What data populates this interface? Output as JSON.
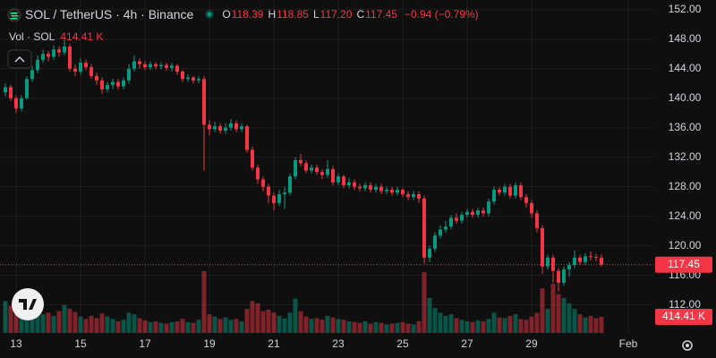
{
  "chart_data": {
    "type": "candlestick",
    "header": {
      "title": "SOL / TetherUS · 4h · Binance",
      "ohlc": [
        {
          "label": "O",
          "value": "118.39"
        },
        {
          "label": "H",
          "value": "118.85"
        },
        {
          "label": "L",
          "value": "117.20"
        },
        {
          "label": "C",
          "value": "117.45"
        }
      ],
      "change": "−0.94 (−0.79%)",
      "volume_title": "Vol · SOL",
      "volume_value": "414.41 K"
    },
    "up_color": "#089981",
    "down_color": "#f23645",
    "grid": true,
    "xlim": [
      -1,
      120.67
    ],
    "xticks": [
      {
        "value": 2,
        "label": "13"
      },
      {
        "value": 14,
        "label": "15"
      },
      {
        "value": 26,
        "label": "17"
      },
      {
        "value": 38,
        "label": "19"
      },
      {
        "value": 50,
        "label": "21"
      },
      {
        "value": 62,
        "label": "23"
      },
      {
        "value": 74,
        "label": "25"
      },
      {
        "value": 86,
        "label": "27"
      },
      {
        "value": 98,
        "label": "29"
      },
      {
        "value": 116,
        "label": "Feb"
      }
    ],
    "ylim": [
      108.2,
      153.3
    ],
    "yticks": [
      {
        "value": 152,
        "label": "152.00"
      },
      {
        "value": 148,
        "label": "148.00"
      },
      {
        "value": 144,
        "label": "144.00"
      },
      {
        "value": 140,
        "label": "140.00"
      },
      {
        "value": 136,
        "label": "136.00"
      },
      {
        "value": 132,
        "label": "132.00"
      },
      {
        "value": 128,
        "label": "128.00"
      },
      {
        "value": 124,
        "label": "124.00"
      },
      {
        "value": 120,
        "label": "120.00"
      },
      {
        "value": 116,
        "label": "116.00"
      },
      {
        "value": 112,
        "label": "112.00"
      }
    ],
    "volume_lim": [
      0,
      8560000
    ],
    "last_price": 117.45,
    "open": [
      140.8,
      141.5,
      140.0,
      138.6,
      140.0,
      142.6,
      143.8,
      145.2,
      146.0,
      145.6,
      146.6,
      146.2,
      147.0,
      144.0,
      143.6,
      144.8,
      144.2,
      143.0,
      142.4,
      141.2,
      141.8,
      142.2,
      141.6,
      142.4,
      144.0,
      145.0,
      144.6,
      144.2,
      144.6,
      144.3,
      144.5,
      144.1,
      144.4,
      143.6,
      142.6,
      142.8,
      142.4,
      142.6,
      136.4,
      135.8,
      136.2,
      135.6,
      136.0,
      136.6,
      135.8,
      136.2,
      133.0,
      130.6,
      129.0,
      128.0,
      126.8,
      125.8,
      127.0,
      127.2,
      129.4,
      131.6,
      131.2,
      130.2,
      130.6,
      130.0,
      129.6,
      130.4,
      128.6,
      129.4,
      128.2,
      128.6,
      128.0,
      127.8,
      128.2,
      127.6,
      128.0,
      127.4,
      127.6,
      127.2,
      127.6,
      127.0,
      126.6,
      127.0,
      126.4,
      118.4,
      119.6,
      121.4,
      122.2,
      122.6,
      123.8,
      123.4,
      124.2,
      124.6,
      124.2,
      124.8,
      124.4,
      126.0,
      127.6,
      127.2,
      128.0,
      126.8,
      128.2,
      126.6,
      125.8,
      124.4,
      122.4,
      117.2,
      118.4,
      116.6,
      115.0,
      116.8,
      117.4,
      118.4,
      117.8,
      118.6,
      118.5,
      118.39
    ],
    "high": [
      142.0,
      141.8,
      140.4,
      140.4,
      143.0,
      144.4,
      145.8,
      146.6,
      146.4,
      147.2,
      147.0,
      148.0,
      147.4,
      144.6,
      145.4,
      145.2,
      144.6,
      143.4,
      142.8,
      142.2,
      142.6,
      142.6,
      142.8,
      144.6,
      145.8,
      145.4,
      145.0,
      145.0,
      144.9,
      144.9,
      144.8,
      144.8,
      144.6,
      143.8,
      143.2,
      143.0,
      143.0,
      143.0,
      137.0,
      136.8,
      136.6,
      136.6,
      137.2,
      137.0,
      136.6,
      136.4,
      133.4,
      131.0,
      129.4,
      128.4,
      127.2,
      127.6,
      128.0,
      129.8,
      132.0,
      132.4,
      131.6,
      131.0,
      131.0,
      130.4,
      131.6,
      130.8,
      129.8,
      129.6,
      129.2,
      129.0,
      128.4,
      128.6,
      128.6,
      128.4,
      128.4,
      128.0,
      128.0,
      128.0,
      127.8,
      127.4,
      127.4,
      127.4,
      126.8,
      120.0,
      121.8,
      122.8,
      123.4,
      124.2,
      124.4,
      124.6,
      125.0,
      125.0,
      125.2,
      125.2,
      126.4,
      128.0,
      128.0,
      128.4,
      128.4,
      128.6,
      128.6,
      127.0,
      126.2,
      124.8,
      122.8,
      118.8,
      118.8,
      117.0,
      117.2,
      117.8,
      119.4,
      118.8,
      119.0,
      119.2,
      118.9,
      118.85
    ],
    "low": [
      140.2,
      139.6,
      138.0,
      138.2,
      139.8,
      142.2,
      143.4,
      144.8,
      145.0,
      145.2,
      145.6,
      145.8,
      143.6,
      143.0,
      143.2,
      143.8,
      142.6,
      141.8,
      140.6,
      140.8,
      141.2,
      141.2,
      141.2,
      142.0,
      143.6,
      144.0,
      143.8,
      143.8,
      143.9,
      143.9,
      143.7,
      143.6,
      143.2,
      142.2,
      142.2,
      142.0,
      142.0,
      130.2,
      135.0,
      135.4,
      135.2,
      135.2,
      135.6,
      135.4,
      135.4,
      132.6,
      130.2,
      128.4,
      127.4,
      125.8,
      124.8,
      125.4,
      125.0,
      126.8,
      129.0,
      130.8,
      129.8,
      129.8,
      129.6,
      129.0,
      129.2,
      128.2,
      128.2,
      127.8,
      127.8,
      127.6,
      127.4,
      127.4,
      127.2,
      127.2,
      127.0,
      127.0,
      126.8,
      126.8,
      126.6,
      126.2,
      126.2,
      125.8,
      117.6,
      117.8,
      119.2,
      121.0,
      121.8,
      122.2,
      123.0,
      123.0,
      123.8,
      123.8,
      123.8,
      124.0,
      124.0,
      125.6,
      126.8,
      126.8,
      126.4,
      126.4,
      126.2,
      125.2,
      123.8,
      121.8,
      116.2,
      116.8,
      115.0,
      113.8,
      114.6,
      115.8,
      117.0,
      117.4,
      117.4,
      118.0,
      117.9,
      117.2
    ],
    "close": [
      141.5,
      140.0,
      138.6,
      140.0,
      142.6,
      143.8,
      145.2,
      146.0,
      145.6,
      146.6,
      146.2,
      147.0,
      144.0,
      143.6,
      144.8,
      144.2,
      143.0,
      142.4,
      141.2,
      141.8,
      142.2,
      141.6,
      142.4,
      144.0,
      145.0,
      144.6,
      144.2,
      144.6,
      144.3,
      144.5,
      144.1,
      144.4,
      143.6,
      142.6,
      142.8,
      142.4,
      142.6,
      136.4,
      135.8,
      136.2,
      135.6,
      136.0,
      136.6,
      135.8,
      136.2,
      133.0,
      130.6,
      129.0,
      128.0,
      126.8,
      125.8,
      127.0,
      127.2,
      129.4,
      131.6,
      131.2,
      130.2,
      130.6,
      130.0,
      129.6,
      130.4,
      128.6,
      129.4,
      128.2,
      128.6,
      128.0,
      127.8,
      128.2,
      127.6,
      128.0,
      127.4,
      127.6,
      127.2,
      127.6,
      127.0,
      126.6,
      127.0,
      126.4,
      118.4,
      119.6,
      121.4,
      122.2,
      122.6,
      123.8,
      123.4,
      124.2,
      124.6,
      124.2,
      124.8,
      124.4,
      126.0,
      127.6,
      127.2,
      128.0,
      126.8,
      128.2,
      126.6,
      125.8,
      124.4,
      122.4,
      117.2,
      118.4,
      116.6,
      115.0,
      116.8,
      117.4,
      118.4,
      117.8,
      118.6,
      118.5,
      118.39,
      117.45
    ],
    "volume": [
      820000,
      700000,
      760000,
      520000,
      640000,
      560000,
      600000,
      480000,
      520000,
      440000,
      560000,
      720000,
      620000,
      540000,
      420000,
      360000,
      440000,
      380000,
      500000,
      420000,
      360000,
      300000,
      340000,
      520000,
      480000,
      380000,
      320000,
      280000,
      300000,
      260000,
      240000,
      280000,
      300000,
      360000,
      280000,
      260000,
      340000,
      1590000,
      480000,
      420000,
      360000,
      400000,
      340000,
      360000,
      300000,
      620000,
      820000,
      760000,
      560000,
      600000,
      520000,
      440000,
      380000,
      520000,
      880000,
      560000,
      420000,
      360000,
      380000,
      340000,
      440000,
      400000,
      360000,
      340000,
      300000,
      280000,
      260000,
      300000,
      240000,
      280000,
      260000,
      220000,
      240000,
      260000,
      280000,
      240000,
      220000,
      300000,
      1560000,
      900000,
      640000,
      520000,
      440000,
      480000,
      380000,
      340000,
      300000,
      280000,
      320000,
      300000,
      360000,
      520000,
      400000,
      380000,
      440000,
      480000,
      360000,
      340000,
      420000,
      520000,
      1150000,
      620000,
      1260000,
      1000000,
      900000,
      760000,
      620000,
      480000,
      400000,
      440000,
      380000,
      414410
    ]
  }
}
